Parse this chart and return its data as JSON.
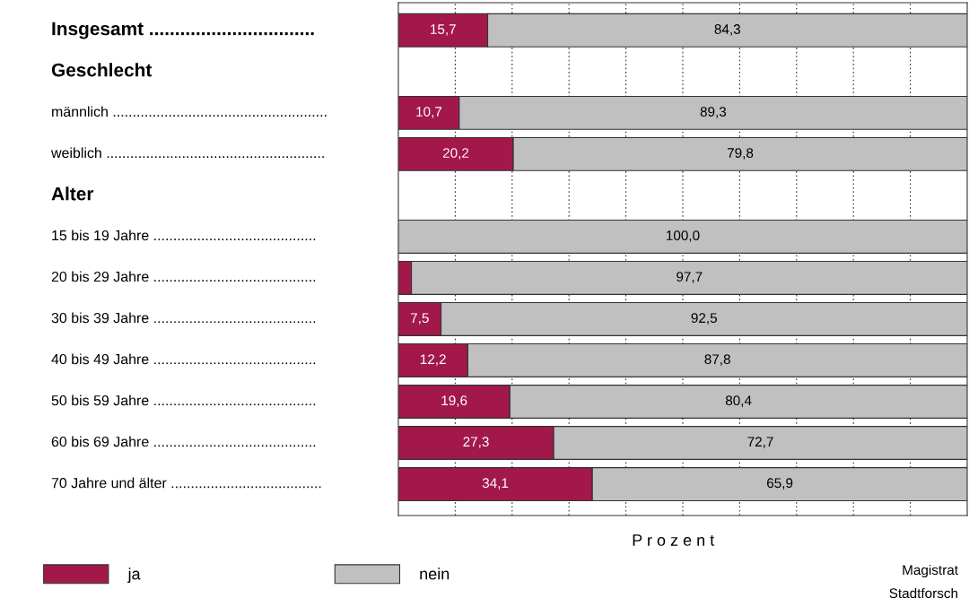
{
  "chart_data": {
    "type": "bar",
    "orientation": "horizontal",
    "stacked": true,
    "categories": [
      "Insgesamt ................................",
      "Geschlecht",
      "männlich ......................................................",
      "weiblich .......................................................",
      "Alter",
      "15 bis 19 Jahre .........................................",
      "20 bis 29 Jahre .........................................",
      "30 bis 39 Jahre .........................................",
      "40 bis 49 Jahre .........................................",
      "50 bis 59 Jahre .........................................",
      "60 bis 69 Jahre .........................................",
      "70 Jahre und älter ......................................"
    ],
    "series": [
      {
        "name": "ja",
        "color": "#a3184a",
        "values": [
          15.7,
          null,
          10.7,
          20.2,
          null,
          0,
          2.3,
          7.5,
          12.2,
          19.6,
          27.3,
          34.1
        ],
        "value_labels": [
          "15,7",
          null,
          "10,7",
          "20,2",
          null,
          null,
          null,
          "7,5",
          "12,2",
          "19,6",
          "27,3",
          "34,1"
        ]
      },
      {
        "name": "nein",
        "color": "#c0c0c0",
        "values": [
          84.3,
          null,
          89.3,
          79.8,
          null,
          100.0,
          97.7,
          92.5,
          87.8,
          80.4,
          72.7,
          65.9
        ],
        "value_labels": [
          "84,3",
          null,
          "89,3",
          "79,8",
          null,
          "100,0",
          "97,7",
          "92,5",
          "87,8",
          "80,4",
          "72,7",
          "65,9"
        ]
      }
    ],
    "xlim": [
      0,
      100
    ],
    "xticks": [
      {
        "value": 10,
        "label": null
      },
      {
        "value": 20,
        "label": null
      },
      {
        "value": 30,
        "label": null
      },
      {
        "value": 40,
        "label": null
      },
      {
        "value": 50,
        "label": null
      },
      {
        "value": 60,
        "label": null
      },
      {
        "value": 70,
        "label": null
      },
      {
        "value": 80,
        "label": null
      },
      {
        "value": 90,
        "label": null
      }
    ],
    "grid": "x",
    "legend": "bottom left",
    "xlabel": "P r o z e n t",
    "annotations": [
      "Magistrat",
      "Stadtforsch"
    ]
  }
}
